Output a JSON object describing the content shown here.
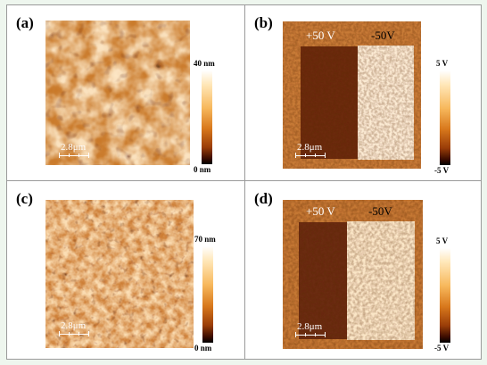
{
  "panels": {
    "a": {
      "label": "(a)",
      "scale_label": "2.8μm",
      "colorbar_max": "40 nm",
      "colorbar_min": "0 nm"
    },
    "b": {
      "label": "(b)",
      "scale_label": "2.8μm",
      "left_voltage": "+50 V",
      "right_voltage": "-50V",
      "colorbar_max": "5 V",
      "colorbar_min": "-5 V"
    },
    "c": {
      "label": "(c)",
      "scale_label": "2.8μm",
      "colorbar_max": "70 nm",
      "colorbar_min": "0 nm"
    },
    "d": {
      "label": "(d)",
      "scale_label": "2.8μm",
      "left_voltage": "+50 V",
      "right_voltage": "-50V",
      "colorbar_max": "5 V",
      "colorbar_min": "-5 V"
    }
  },
  "colors": {
    "topography_dark": "#7a3000",
    "topography_light": "#ffe9c4",
    "kpfm_background": "#c47a35",
    "kpfm_positive_region": "#6a2a0a",
    "kpfm_negative_region": "#fbebd4"
  }
}
